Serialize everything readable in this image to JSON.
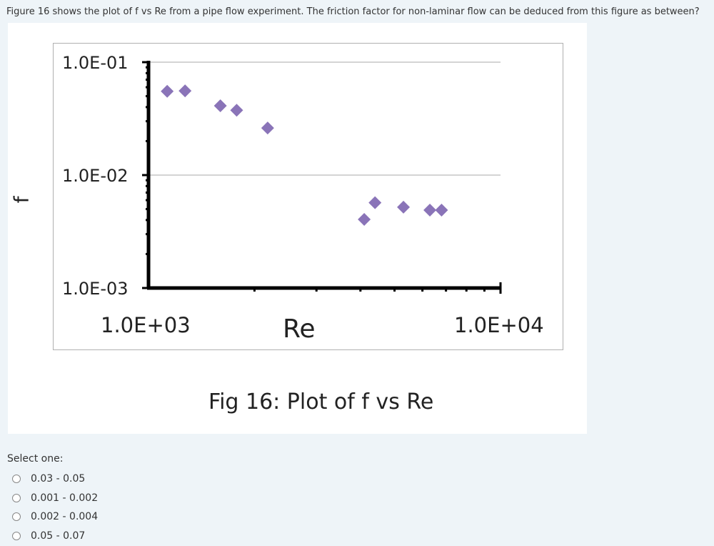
{
  "question": {
    "text": "Figure 16 shows the plot of f vs Re from a pipe flow experiment. The friction factor for non-laminar flow can be deduced from this figure as between?"
  },
  "figure": {
    "caption": "Fig 16: Plot of f vs  Re",
    "ylabel": "f"
  },
  "chart_data": {
    "type": "scatter",
    "title": "",
    "xlabel": "Re",
    "ylabel": "f",
    "xscale": "log",
    "yscale": "log",
    "xlim": [
      1000,
      10000
    ],
    "ylim": [
      0.001,
      0.1
    ],
    "x_tick_labels": [
      "1.0E+03",
      "1.0E+04"
    ],
    "y_tick_labels": [
      "1.0E-01",
      "1.0E-02",
      "1.0E-03"
    ],
    "grid": "horizontal",
    "marker": "diamond",
    "color": "#8a74b8",
    "points": [
      {
        "x": 1130,
        "y": 0.0552
      },
      {
        "x": 1270,
        "y": 0.0557
      },
      {
        "x": 1600,
        "y": 0.0411
      },
      {
        "x": 1780,
        "y": 0.0375
      },
      {
        "x": 2180,
        "y": 0.0261
      },
      {
        "x": 4100,
        "y": 0.00405
      },
      {
        "x": 4400,
        "y": 0.0057
      },
      {
        "x": 5300,
        "y": 0.0052
      },
      {
        "x": 6300,
        "y": 0.0049
      },
      {
        "x": 6800,
        "y": 0.0049
      }
    ]
  },
  "answer": {
    "prompt": "Select one:",
    "options": [
      {
        "label": "0.03 - 0.05"
      },
      {
        "label": "0.001 - 0.002"
      },
      {
        "label": "0.002 - 0.004"
      },
      {
        "label": "0.05 - 0.07"
      }
    ]
  }
}
